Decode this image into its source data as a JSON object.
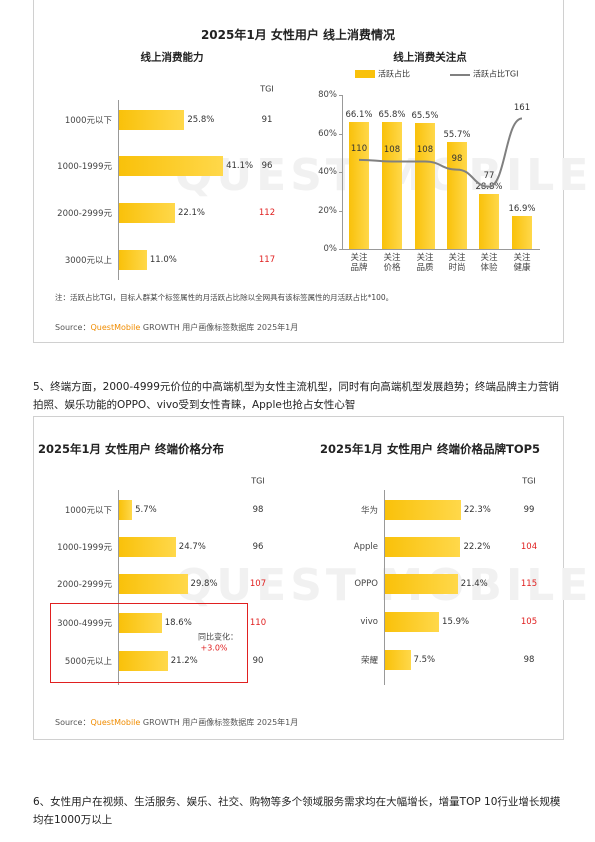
{
  "figure_1": {
    "title": "2025年1月 女性用户 线上消费情况",
    "note": "注：活跃占比TGI，目标人群某个标签属性的月活跃占比除以全网具有该标签属性的月活跃占比*100。",
    "source": {
      "label": "Source：",
      "brand": "QuestMobile",
      "text": "GROWTH 用户画像标签数据库 2025年1月"
    },
    "watermark": "QUEST MOBILE"
  },
  "paragraph_5": "5、终端方面，2000-4999元价位的中高端机型为女性主流机型，同时有向高端机型发展趋势；终端品牌主力营销拍照、娱乐功能的OPPO、vivo受到女性青睐，Apple也抢占女性心智",
  "figure_2": {
    "source": {
      "label": "Source：",
      "brand": "QuestMobile",
      "text": "GROWTH 用户画像标签数据库 2025年1月"
    },
    "watermark": "QUEST MOBILE"
  },
  "paragraph_6": "6、女性用户在视频、生活服务、娱乐、社交、购物等多个领域服务需求均在大幅增长，增量TOP 10行业增长规模均在1000万以上",
  "chart_data": [
    {
      "type": "bar",
      "horizontal": true,
      "title": "线上消费能力",
      "categories": [
        "1000元以下",
        "1000-1999元",
        "2000-2999元",
        "3000元以上"
      ],
      "values": [
        25.8,
        41.1,
        22.1,
        11.0
      ],
      "value_labels": [
        "25.8%",
        "41.1%",
        "22.1%",
        "11.0%"
      ],
      "color": "#f9c10a",
      "xlim": [
        0,
        45
      ],
      "tgi": {
        "label": "TGI",
        "values": [
          91,
          96,
          112,
          117
        ],
        "colors": [
          "#333333",
          "#333333",
          "#e02020",
          "#e02020"
        ]
      }
    },
    {
      "type": "combo",
      "title": "线上消费关注点",
      "categories": [
        "关注品牌",
        "关注价格",
        "关注品质",
        "关注时尚",
        "关注体验",
        "关注健康"
      ],
      "series": [
        {
          "name": "活跃占比",
          "type": "bar",
          "color": "#f9c10a",
          "values": [
            66.1,
            65.8,
            65.5,
            55.7,
            28.8,
            16.9
          ],
          "value_labels": [
            "66.1%",
            "65.8%",
            "65.5%",
            "55.7%",
            "28.8%",
            "16.9%"
          ]
        },
        {
          "name": "活跃占比TGI",
          "type": "line",
          "axis": "y2",
          "color": "#808080",
          "values": [
            110,
            108,
            108,
            98,
            77,
            161
          ]
        }
      ],
      "ylim": [
        0,
        80
      ],
      "yticks": [
        {
          "value": 0,
          "label": "0%"
        },
        {
          "value": 20,
          "label": "20%"
        },
        {
          "value": 40,
          "label": "40%"
        },
        {
          "value": 60,
          "label": "60%"
        },
        {
          "value": 80,
          "label": "80%"
        }
      ],
      "y2lim": [
        0,
        190
      ]
    },
    {
      "type": "bar",
      "horizontal": true,
      "title": "2025年1月 女性用户 终端价格分布",
      "categories": [
        "1000元以下",
        "1000-1999元",
        "2000-2999元",
        "3000-4999元",
        "5000元以上"
      ],
      "values": [
        5.7,
        24.7,
        29.8,
        18.6,
        21.2
      ],
      "value_labels": [
        "5.7%",
        "24.7%",
        "29.8%",
        "18.6%",
        "21.2%"
      ],
      "color": "#f9c10a",
      "xlim": [
        0,
        50
      ],
      "tgi": {
        "label": "TGI",
        "values": [
          98,
          96,
          107,
          110,
          90
        ],
        "colors": [
          "#333333",
          "#333333",
          "#e02020",
          "#e02020",
          "#333333"
        ]
      },
      "annotation": {
        "label": "同比变化：",
        "text": "+3.0%",
        "color": "#e02020"
      }
    },
    {
      "type": "bar",
      "horizontal": true,
      "title": "2025年1月 女性用户 终端价格品牌TOP5",
      "categories": [
        "华为",
        "Apple",
        "OPPO",
        "vivo",
        "荣耀"
      ],
      "values": [
        22.3,
        22.2,
        21.4,
        15.9,
        7.5
      ],
      "value_labels": [
        "22.3%",
        "22.2%",
        "21.4%",
        "15.9%",
        "7.5%"
      ],
      "color": "#f9c10a",
      "xlim": [
        0,
        35
      ],
      "tgi": {
        "label": "TGI",
        "values": [
          99,
          104,
          115,
          105,
          98
        ],
        "colors": [
          "#333333",
          "#e02020",
          "#e02020",
          "#e02020",
          "#333333"
        ]
      }
    }
  ]
}
